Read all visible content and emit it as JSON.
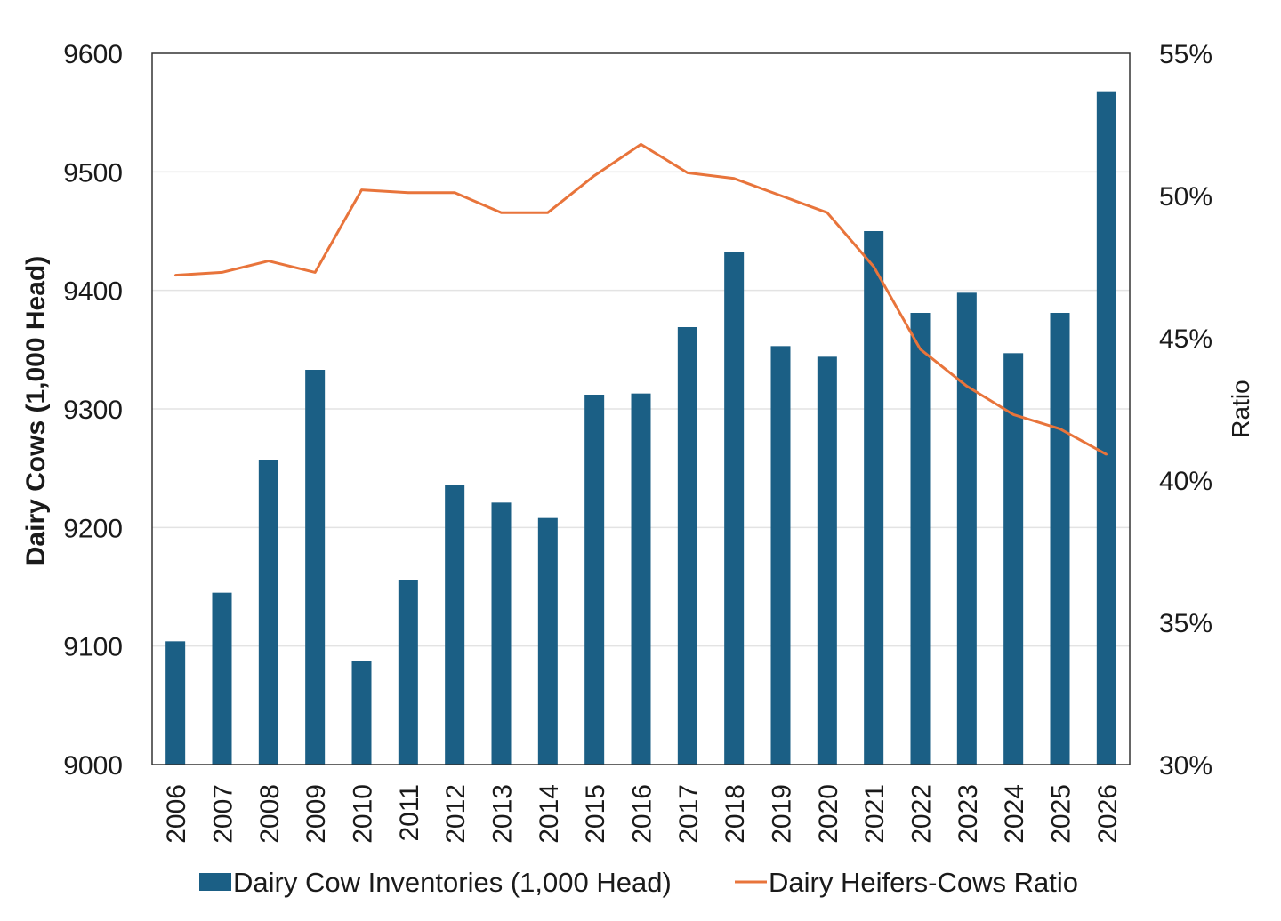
{
  "chart_data": {
    "type": "bar",
    "title": "",
    "x": [
      "2006",
      "2007",
      "2008",
      "2009",
      "2010",
      "2011",
      "2012",
      "2013",
      "2014",
      "2015",
      "2016",
      "2017",
      "2018",
      "2019",
      "2020",
      "2021",
      "2022",
      "2023",
      "2024",
      "2025",
      "2026"
    ],
    "series": [
      {
        "name": "Dairy Cow Inventories (1,000 Head)",
        "type": "bar",
        "axis": "left",
        "color": "#1b5f85",
        "values": [
          9104,
          9145,
          9257,
          9333,
          9087,
          9156,
          9236,
          9221,
          9208,
          9312,
          9313,
          9369,
          9432,
          9353,
          9344,
          9450,
          9381,
          9398,
          9347,
          9381,
          9568
        ]
      },
      {
        "name": "Dairy Heifers-Cows Ratio",
        "type": "line",
        "axis": "right",
        "color": "#e8743b",
        "values": [
          0.472,
          0.473,
          0.477,
          0.473,
          0.502,
          0.501,
          0.501,
          0.494,
          0.494,
          0.507,
          0.518,
          0.508,
          0.506,
          0.5,
          0.494,
          0.475,
          0.446,
          0.433,
          0.423,
          0.418,
          0.409
        ]
      }
    ],
    "y_left": {
      "label": "Dairy Cows (1,000 Head)",
      "range": [
        9000,
        9600
      ],
      "ticks": [
        "9000",
        "9100",
        "9200",
        "9300",
        "9400",
        "9500",
        "9600"
      ]
    },
    "y_right": {
      "label": "Ratio",
      "range": [
        0.3,
        0.55
      ],
      "ticks": [
        "30%",
        "35%",
        "40%",
        "45%",
        "50%",
        "55%"
      ]
    },
    "grid": true,
    "legend_position": "bottom"
  }
}
